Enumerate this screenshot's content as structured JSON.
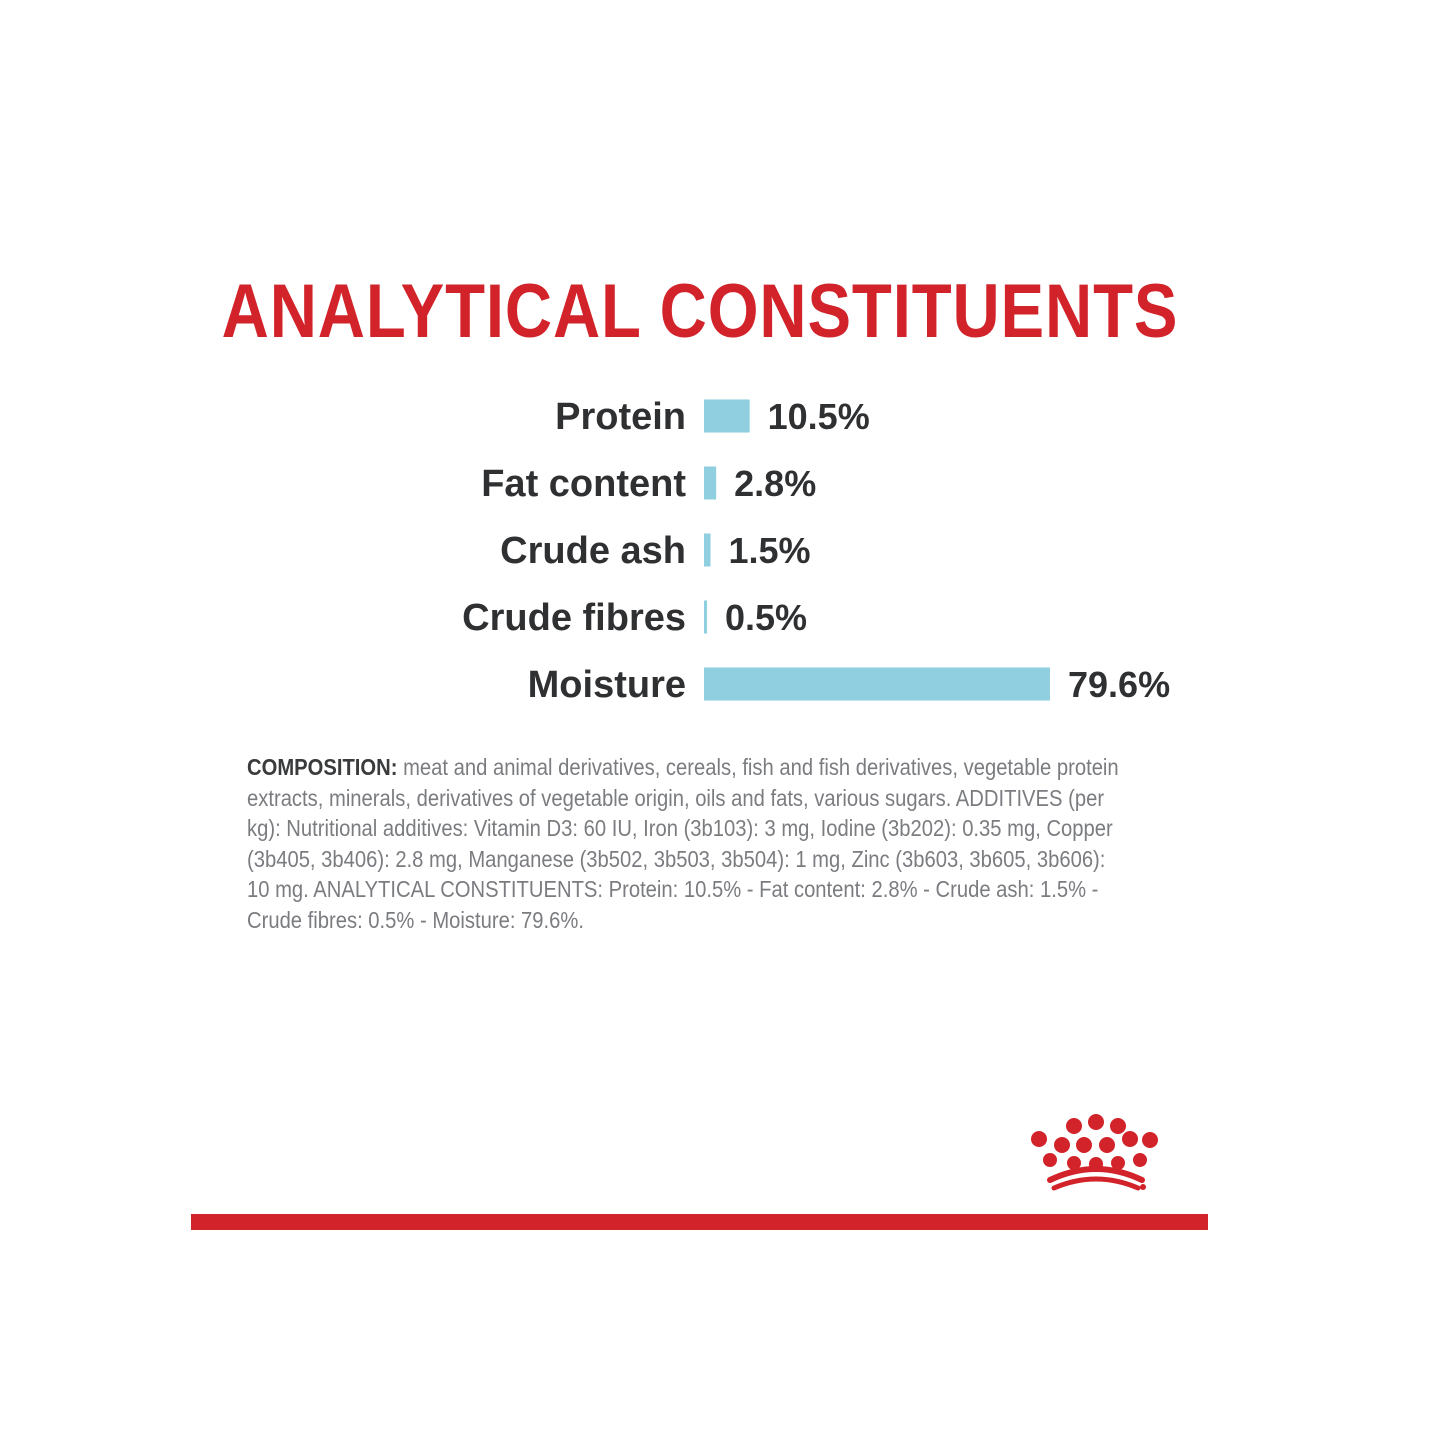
{
  "colors": {
    "title": "#d2232a",
    "bar": "#8fcfe0",
    "brand_red": "#d2232a",
    "text_dark": "#2f3032",
    "text_gray": "#7a7c80"
  },
  "chart_data": {
    "type": "bar",
    "orientation": "horizontal",
    "title": "ANALYTICAL CONSTITUENTS",
    "categories": [
      "Protein",
      "Fat content",
      "Crude ash",
      "Crude fibres",
      "Moisture"
    ],
    "values": [
      10.5,
      2.8,
      1.5,
      0.5,
      79.6
    ],
    "value_labels": [
      "10.5%",
      "2.8%",
      "1.5%",
      "0.5%",
      "79.6%"
    ],
    "unit": "%",
    "xlabel": "",
    "ylabel": "",
    "xlim": [
      0,
      79.6
    ],
    "grid": false,
    "legend": "none"
  },
  "composition": {
    "label": "COMPOSITION:",
    "text": "meat and animal derivatives, cereals, fish and fish derivatives, vegetable protein extracts, minerals, derivatives of vegetable origin, oils and fats, various sugars. ADDITIVES (per kg): Nutritional additives: Vitamin D3: 60 IU, Iron (3b103): 3 mg, Iodine (3b202): 0.35 mg, Copper (3b405, 3b406): 2.8 mg, Manganese (3b502, 3b503, 3b504): 1 mg, Zinc (3b603, 3b605, 3b606): 10 mg. ANALYTICAL CONSTITUENTS: Protein: 10.5% - Fat content: 2.8% - Crude ash: 1.5% - Crude fibres: 0.5% - Moisture: 79.6%."
  },
  "logo": {
    "icon": "royal-canin-crown-icon"
  }
}
